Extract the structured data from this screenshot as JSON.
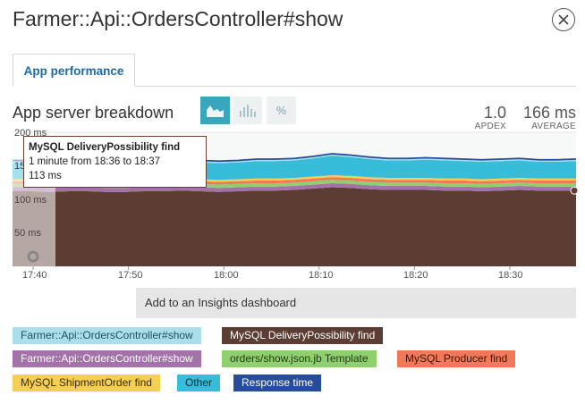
{
  "header": {
    "title": "Farmer::Api::OrdersController#show",
    "close_icon": "close-icon"
  },
  "tabs": [
    {
      "label": "App performance",
      "active": true
    }
  ],
  "section": {
    "title": "App server breakdown",
    "view_buttons": [
      {
        "icon": "area-chart-icon",
        "active": true
      },
      {
        "icon": "bar-chart-icon",
        "active": false
      },
      {
        "label": "%",
        "active": false
      }
    ],
    "apdex": {
      "value": "1.0",
      "label": "APDEX"
    },
    "average": {
      "value": "166 ms",
      "label": "AVERAGE"
    }
  },
  "chart_data": {
    "type": "area",
    "stacked": true,
    "y_tick_labels": [
      "200 ms",
      "150 ms",
      "100 ms",
      "50 ms"
    ],
    "ylim": [
      0,
      200
    ],
    "x_tick_labels": [
      "17:40",
      "17:50",
      "18:00",
      "18:10",
      "18:20",
      "18:30"
    ],
    "x": [
      "17:36",
      "17:38",
      "17:40",
      "17:42",
      "17:44",
      "17:46",
      "17:48",
      "17:50",
      "17:52",
      "17:54",
      "17:56",
      "17:58",
      "18:00",
      "18:02",
      "18:04",
      "18:06",
      "18:08",
      "18:10",
      "18:12",
      "18:14",
      "18:16",
      "18:18",
      "18:20",
      "18:22",
      "18:24",
      "18:26",
      "18:28",
      "18:30",
      "18:32",
      "18:34",
      "18:36"
    ],
    "series": [
      {
        "name": "MySQL DeliveryPossibility find",
        "color": "#5c3d33",
        "values": [
          112,
          112,
          111,
          112,
          112,
          111,
          111,
          112,
          112,
          113,
          112,
          111,
          112,
          113,
          113,
          114,
          116,
          118,
          117,
          115,
          114,
          114,
          114,
          113,
          113,
          112,
          113,
          114,
          113,
          113,
          113
        ]
      },
      {
        "name": "Farmer::Api::OrdersController#show",
        "color": "#a272a8",
        "values": [
          6,
          6,
          6,
          6,
          6,
          6,
          6,
          6,
          6,
          6,
          6,
          6,
          6,
          6,
          6,
          6,
          6,
          6,
          6,
          6,
          6,
          6,
          6,
          6,
          6,
          6,
          6,
          6,
          6,
          6,
          6
        ]
      },
      {
        "name": "orders/show.json.jb Template",
        "color": "#8fcf6e",
        "values": [
          5,
          5,
          5,
          5,
          5,
          5,
          5,
          5,
          5,
          5,
          5,
          5,
          5,
          5,
          5,
          5,
          5,
          5,
          5,
          5,
          5,
          5,
          5,
          5,
          5,
          5,
          5,
          5,
          5,
          5,
          5
        ]
      },
      {
        "name": "MySQL Producer find",
        "color": "#f0795a",
        "values": [
          4,
          4,
          4,
          4,
          4,
          4,
          4,
          4,
          4,
          4,
          4,
          4,
          4,
          4,
          4,
          4,
          4,
          4,
          4,
          4,
          4,
          4,
          4,
          4,
          4,
          4,
          4,
          4,
          4,
          4,
          4
        ]
      },
      {
        "name": "MySQL ShipmentOrder find",
        "color": "#f3cf52",
        "values": [
          3,
          3,
          3,
          3,
          3,
          3,
          3,
          3,
          3,
          3,
          3,
          3,
          3,
          3,
          3,
          3,
          3,
          3,
          3,
          3,
          3,
          3,
          3,
          3,
          3,
          3,
          3,
          3,
          3,
          3,
          3
        ]
      },
      {
        "name": "Other",
        "color": "#37bcd9",
        "values": [
          25,
          25,
          25,
          25,
          26,
          26,
          25,
          25,
          26,
          25,
          25,
          25,
          25,
          26,
          26,
          26,
          27,
          29,
          28,
          27,
          26,
          26,
          27,
          27,
          26,
          26,
          26,
          26,
          25,
          25,
          26
        ]
      },
      {
        "name": "Farmer::Api::OrdersController#show",
        "color": "#a8dfeb",
        "values": [
          3,
          3,
          3,
          3,
          3,
          3,
          3,
          3,
          3,
          3,
          3,
          3,
          3,
          3,
          3,
          3,
          3,
          3,
          3,
          3,
          3,
          3,
          3,
          3,
          3,
          3,
          3,
          3,
          3,
          3,
          3
        ]
      }
    ],
    "response_time": {
      "name": "Response time",
      "color": "#274c99"
    },
    "tooltip": {
      "title": "MySQL DeliveryPossibility find",
      "time": "1 minute from 18:36 to 18:37",
      "value": "113 ms"
    }
  },
  "insights_button": "Add to an Insights dashboard",
  "legend": [
    {
      "label": "Farmer::Api::OrdersController#show",
      "bg": "#a8dfeb",
      "fg": "#1f4f63"
    },
    {
      "label": "MySQL DeliveryPossibility find",
      "bg": "#5c3d33",
      "fg": "#ffffff"
    },
    {
      "label": "Farmer::Api::OrdersController#show",
      "bg": "#a272a8",
      "fg": "#ffffff"
    },
    {
      "label": "orders/show.json.jb Template",
      "bg": "#8fcf6e",
      "fg": "#1f3a12"
    },
    {
      "label": "MySQL Producer find",
      "bg": "#f0795a",
      "fg": "#3a1208"
    },
    {
      "label": "MySQL ShipmentOrder find",
      "bg": "#f3cf52",
      "fg": "#3a2e05"
    },
    {
      "label": "Other",
      "bg": "#37bcd9",
      "fg": "#0c2f3a"
    },
    {
      "label": "Response time",
      "bg": "#274c99",
      "fg": "#ffffff"
    }
  ]
}
